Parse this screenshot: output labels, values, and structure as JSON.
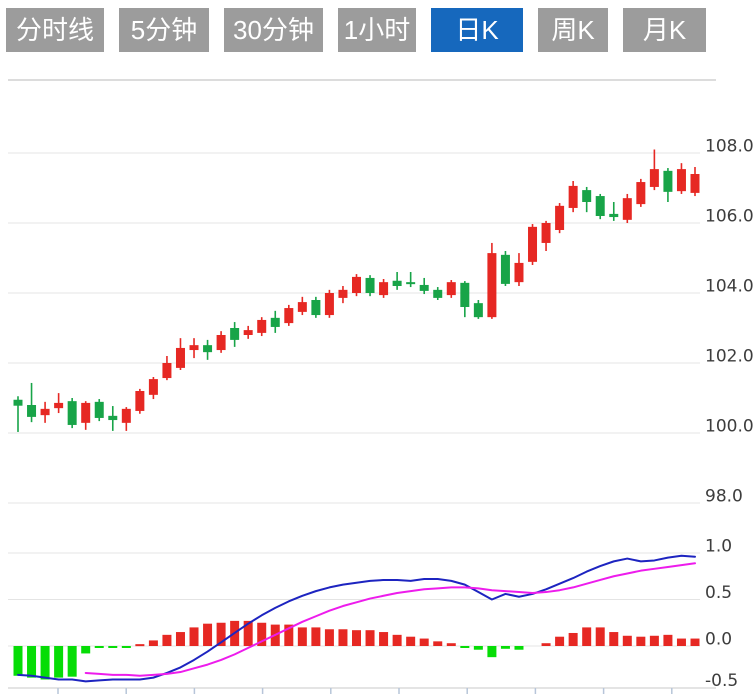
{
  "toolbar": {
    "buttons": [
      {
        "label": "分时线",
        "active": false
      },
      {
        "label": "5分钟",
        "active": false
      },
      {
        "label": "30分钟",
        "active": false
      },
      {
        "label": "1小时",
        "active": false
      },
      {
        "label": "日K",
        "active": true
      },
      {
        "label": "周K",
        "active": false
      },
      {
        "label": "月K",
        "active": false
      }
    ]
  },
  "colors": {
    "up": "#e62823",
    "down": "#18a448",
    "histGreen": "#06dd06",
    "dif": "#1d24c0",
    "dea": "#ed1cec",
    "grid": "#e4e4e4",
    "border": "#dcdcdc",
    "axisText": "#3d3d3d",
    "tick": "#b7c5d9",
    "buttonGray": "#9c9c9c",
    "buttonBlue": "#1668bd",
    "buttonText": "#ffffff"
  },
  "chart_data": {
    "type": "candlestick",
    "title": "",
    "grid": true,
    "legend": false,
    "price_panel": {
      "y_axis": {
        "labels": [
          "108.0",
          "106.0",
          "104.0",
          "102.0",
          "100.0",
          "98.0"
        ],
        "values": [
          108,
          106,
          104,
          102,
          100,
          98
        ],
        "range": [
          97.5,
          110
        ]
      },
      "ohlc_order": [
        "open",
        "high",
        "low",
        "close"
      ],
      "up_means": "close >= open (red)",
      "ohlc": [
        [
          100.95,
          101.05,
          100.03,
          100.78
        ],
        [
          100.8,
          101.43,
          100.31,
          100.46
        ],
        [
          100.51,
          100.89,
          100.29,
          100.69
        ],
        [
          100.71,
          101.14,
          100.57,
          100.86
        ],
        [
          100.91,
          101.0,
          100.14,
          100.23
        ],
        [
          100.29,
          100.91,
          100.09,
          100.86
        ],
        [
          100.89,
          100.97,
          100.34,
          100.43
        ],
        [
          100.49,
          100.77,
          100.06,
          100.37
        ],
        [
          100.29,
          100.74,
          100.06,
          100.69
        ],
        [
          100.63,
          101.26,
          100.55,
          101.2
        ],
        [
          101.09,
          101.6,
          100.97,
          101.54
        ],
        [
          101.57,
          102.2,
          101.51,
          102.0
        ],
        [
          101.86,
          102.71,
          101.8,
          102.43
        ],
        [
          102.37,
          102.71,
          102.14,
          102.51
        ],
        [
          102.51,
          102.66,
          102.09,
          102.31
        ],
        [
          102.37,
          102.91,
          102.29,
          102.8
        ],
        [
          103.0,
          103.17,
          102.46,
          102.66
        ],
        [
          102.8,
          103.06,
          102.69,
          102.94
        ],
        [
          102.86,
          103.31,
          102.77,
          103.23
        ],
        [
          103.29,
          103.49,
          102.86,
          103.03
        ],
        [
          103.14,
          103.66,
          103.06,
          103.57
        ],
        [
          103.46,
          103.89,
          103.37,
          103.74
        ],
        [
          103.8,
          103.89,
          103.29,
          103.37
        ],
        [
          103.37,
          104.09,
          103.29,
          104.0
        ],
        [
          103.86,
          104.2,
          103.71,
          104.09
        ],
        [
          104.0,
          104.54,
          103.91,
          104.46
        ],
        [
          104.43,
          104.51,
          103.91,
          104.0
        ],
        [
          103.94,
          104.4,
          103.86,
          104.31
        ],
        [
          104.35,
          104.6,
          104.09,
          104.2
        ],
        [
          104.31,
          104.6,
          104.17,
          104.26
        ],
        [
          104.23,
          104.43,
          103.97,
          104.06
        ],
        [
          104.09,
          104.17,
          103.8,
          103.86
        ],
        [
          103.94,
          104.37,
          103.86,
          104.31
        ],
        [
          104.29,
          104.34,
          103.31,
          103.6
        ],
        [
          103.71,
          103.8,
          103.26,
          103.31
        ],
        [
          103.31,
          105.43,
          103.26,
          105.14
        ],
        [
          105.09,
          105.2,
          104.2,
          104.26
        ],
        [
          104.31,
          105.14,
          104.2,
          104.86
        ],
        [
          104.89,
          105.97,
          104.8,
          105.89
        ],
        [
          105.43,
          106.06,
          105.2,
          106.0
        ],
        [
          105.8,
          106.57,
          105.71,
          106.49
        ],
        [
          106.43,
          107.2,
          106.31,
          107.06
        ],
        [
          106.94,
          107.03,
          106.31,
          106.6
        ],
        [
          106.77,
          106.83,
          106.11,
          106.2
        ],
        [
          106.26,
          106.6,
          106.06,
          106.17
        ],
        [
          106.09,
          106.83,
          106.0,
          106.71
        ],
        [
          106.54,
          107.26,
          106.46,
          107.17
        ],
        [
          107.03,
          108.1,
          106.94,
          107.54
        ],
        [
          107.49,
          107.57,
          106.6,
          106.89
        ],
        [
          106.91,
          107.71,
          106.83,
          107.54
        ],
        [
          106.86,
          107.6,
          106.77,
          107.4
        ]
      ]
    },
    "macd_panel": {
      "y_axis": {
        "labels": [
          "1.0",
          "0.5",
          "0.0",
          "-0.5"
        ],
        "values": [
          1.0,
          0.5,
          0.0,
          -0.5
        ],
        "range": [
          -0.5,
          1.0
        ]
      },
      "histogram": [
        -0.32,
        -0.34,
        -0.36,
        -0.34,
        -0.33,
        -0.08,
        -0.02,
        -0.02,
        -0.02,
        0.02,
        0.06,
        0.12,
        0.15,
        0.2,
        0.24,
        0.25,
        0.27,
        0.27,
        0.25,
        0.23,
        0.23,
        0.2,
        0.2,
        0.18,
        0.18,
        0.17,
        0.17,
        0.15,
        0.12,
        0.1,
        0.08,
        0.05,
        0.03,
        -0.02,
        -0.04,
        -0.12,
        -0.03,
        -0.04,
        0,
        0.03,
        0.1,
        0.14,
        0.2,
        0.2,
        0.15,
        0.11,
        0.1,
        0.11,
        0.12,
        0.08,
        0.08
      ],
      "dif": [
        -0.31,
        -0.32,
        -0.34,
        -0.36,
        -0.36,
        -0.38,
        -0.37,
        -0.36,
        -0.36,
        -0.36,
        -0.34,
        -0.29,
        -0.23,
        -0.15,
        -0.06,
        0.04,
        0.14,
        0.24,
        0.33,
        0.41,
        0.48,
        0.54,
        0.59,
        0.63,
        0.66,
        0.68,
        0.7,
        0.71,
        0.71,
        0.7,
        0.72,
        0.72,
        0.7,
        0.66,
        0.58,
        0.5,
        0.56,
        0.53,
        0.56,
        0.61,
        0.67,
        0.73,
        0.8,
        0.86,
        0.91,
        0.94,
        0.91,
        0.92,
        0.95,
        0.97,
        0.96
      ],
      "dea": [
        null,
        null,
        null,
        null,
        null,
        -0.29,
        -0.3,
        -0.31,
        -0.31,
        -0.32,
        -0.31,
        -0.3,
        -0.28,
        -0.24,
        -0.2,
        -0.15,
        -0.09,
        -0.02,
        0.05,
        0.12,
        0.19,
        0.26,
        0.32,
        0.38,
        0.43,
        0.47,
        0.51,
        0.54,
        0.57,
        0.59,
        0.61,
        0.62,
        0.63,
        0.63,
        0.62,
        0.6,
        0.59,
        0.58,
        0.57,
        0.58,
        0.6,
        0.63,
        0.67,
        0.71,
        0.75,
        0.78,
        0.81,
        0.83,
        0.85,
        0.87,
        0.89
      ]
    }
  }
}
